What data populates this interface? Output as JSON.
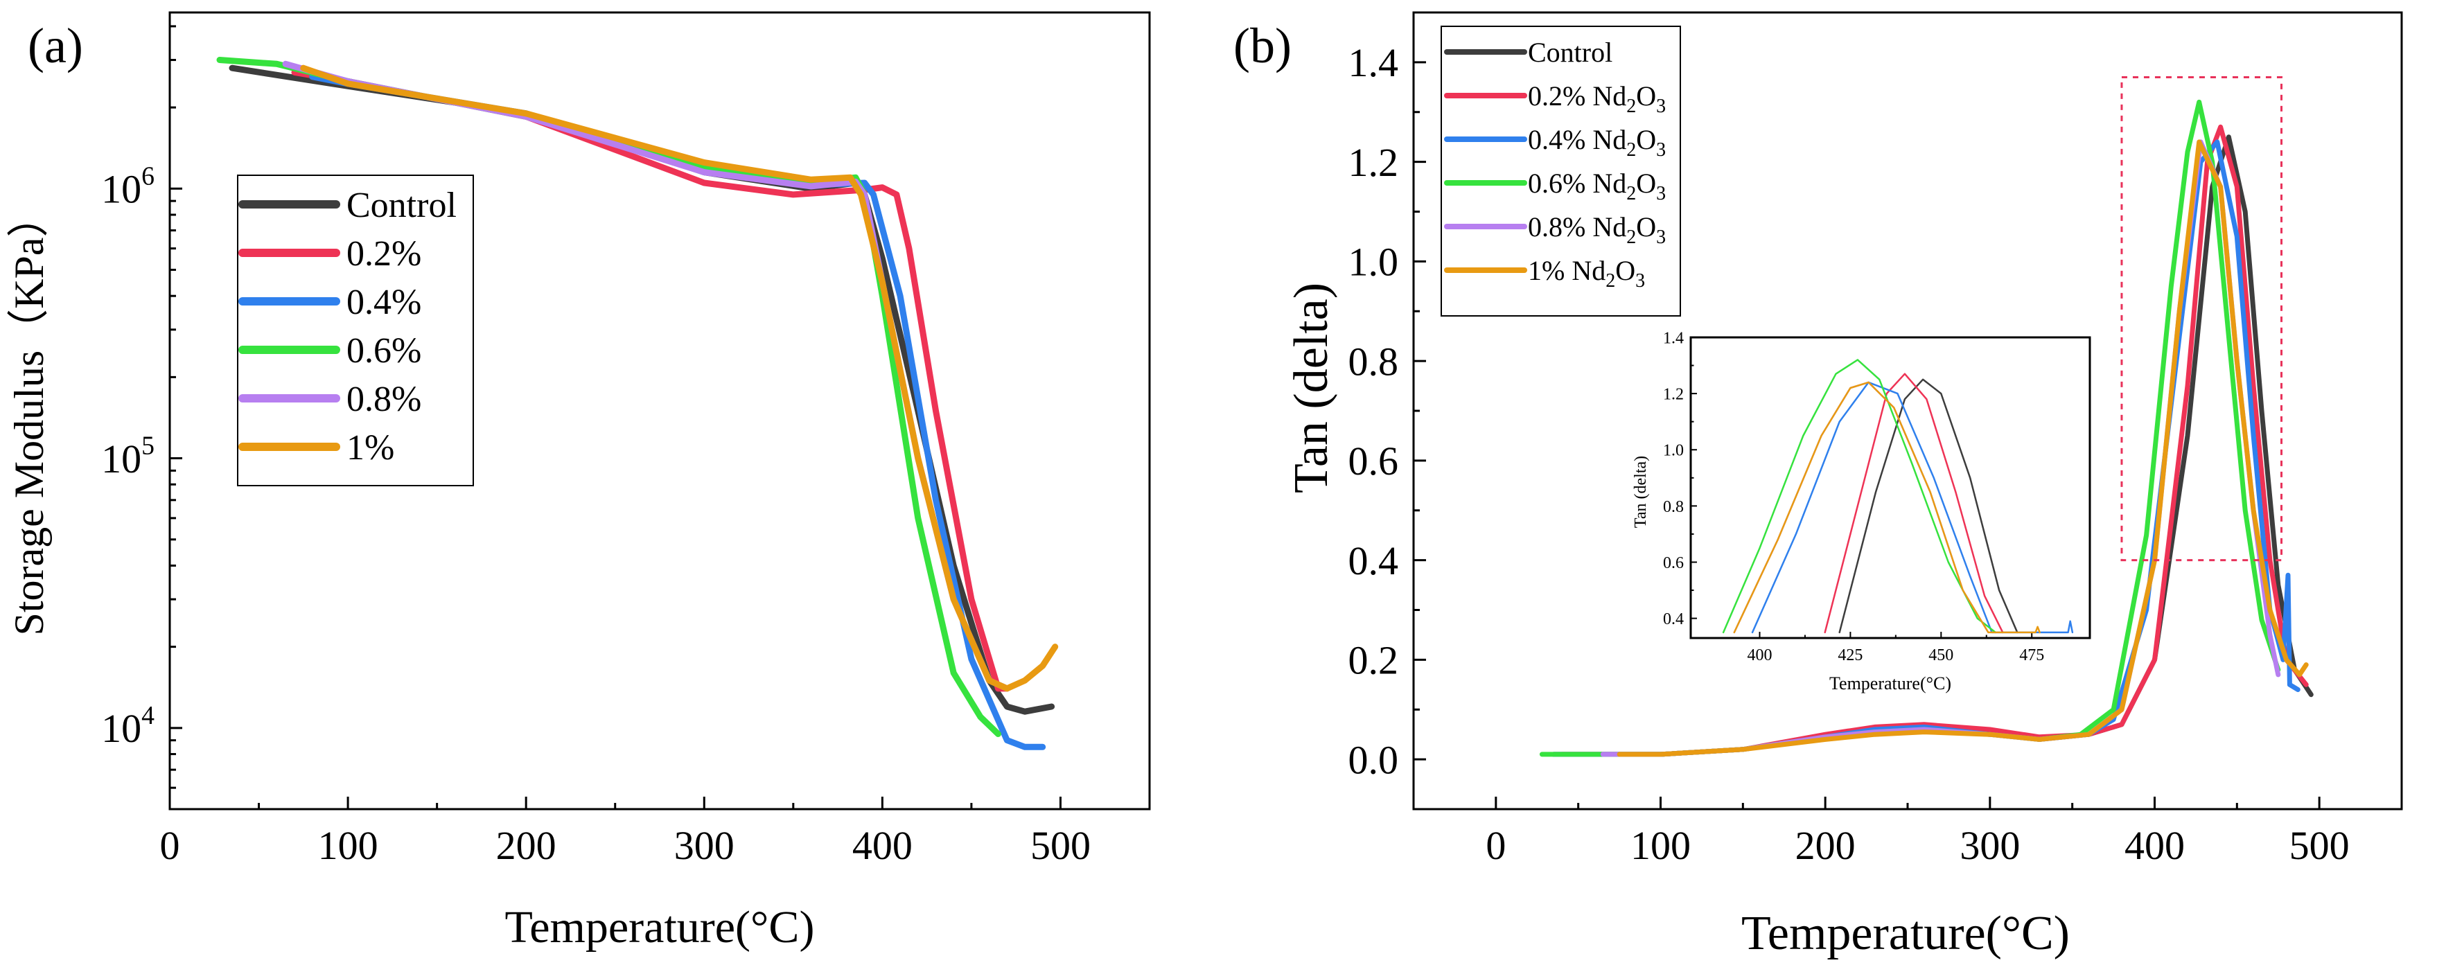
{
  "colors": {
    "Control": "#3d3d3d",
    "0.2%": "#ee3355",
    "0.4%": "#2f80ed",
    "0.6%": "#36e23e",
    "0.8%": "#b77ff0",
    "1%": "#e89a12",
    "box": "#e8325a"
  },
  "chart_data": [
    {
      "panel_label": "(a)",
      "type": "line",
      "yscale": "log",
      "xlabel": "Temperature(°C)",
      "ylabel": "Storage Modulus（KPa）",
      "xlim": [
        0,
        550
      ],
      "ylim": [
        5000,
        4500000
      ],
      "xticks": [
        0,
        100,
        200,
        300,
        400,
        500
      ],
      "xtick_labels": [
        "0",
        "100",
        "200",
        "300",
        "400",
        "500"
      ],
      "yticks": [
        10000,
        100000,
        1000000
      ],
      "ytick_labels": [
        {
          "base": "10",
          "exp": "4"
        },
        {
          "base": "10",
          "exp": "5"
        },
        {
          "base": "10",
          "exp": "6"
        }
      ],
      "legend": {
        "position": "upper-left",
        "entries": [
          "Control",
          "0.2%",
          "0.4%",
          "0.6%",
          "0.8%",
          "1%"
        ]
      },
      "series": [
        {
          "name": "Control",
          "x": [
            35,
            100,
            200,
            300,
            360,
            385,
            390,
            400,
            420,
            440,
            460,
            470,
            480,
            495
          ],
          "y": [
            2800000,
            2400000,
            1900000,
            1150000,
            1000000,
            1050000,
            950000,
            550000,
            150000,
            40000,
            15000,
            12000,
            11500,
            12000
          ]
        },
        {
          "name": "0.2%",
          "x": [
            70,
            100,
            200,
            300,
            350,
            390,
            400,
            408,
            415,
            430,
            450,
            465,
            470
          ],
          "y": [
            2700000,
            2500000,
            1850000,
            1050000,
            950000,
            990000,
            1010000,
            950000,
            600000,
            150000,
            30000,
            14000,
            14000
          ]
        },
        {
          "name": "0.4%",
          "x": [
            80,
            100,
            200,
            300,
            360,
            390,
            395,
            410,
            430,
            450,
            470,
            480,
            490
          ],
          "y": [
            2600000,
            2450000,
            1900000,
            1150000,
            1030000,
            1050000,
            950000,
            400000,
            70000,
            18000,
            9000,
            8500,
            8500
          ]
        },
        {
          "name": "0.6%",
          "x": [
            28,
            60,
            100,
            200,
            300,
            360,
            385,
            390,
            400,
            420,
            440,
            455,
            465
          ],
          "y": [
            3000000,
            2900000,
            2500000,
            1850000,
            1200000,
            1050000,
            1100000,
            950000,
            400000,
            60000,
            16000,
            11000,
            9500
          ]
        },
        {
          "name": "0.8%",
          "x": [
            65,
            100,
            200,
            300,
            360,
            385,
            390,
            400,
            420,
            440,
            460,
            470
          ],
          "y": [
            2900000,
            2500000,
            1850000,
            1150000,
            1020000,
            1060000,
            950000,
            450000,
            100000,
            30000,
            15000,
            14000
          ]
        },
        {
          "name": "1%",
          "x": [
            75,
            100,
            200,
            300,
            360,
            382,
            388,
            400,
            420,
            440,
            460,
            470,
            480,
            490,
            497
          ],
          "y": [
            2800000,
            2450000,
            1900000,
            1250000,
            1080000,
            1100000,
            950000,
            450000,
            100000,
            30000,
            15000,
            14000,
            15000,
            17000,
            20000
          ]
        }
      ]
    },
    {
      "panel_label": "(b)",
      "type": "line",
      "xlabel": "Temperature(°C)",
      "ylabel": "Tan (delta)",
      "xlim": [
        -50,
        550
      ],
      "ylim": [
        -0.1,
        1.5
      ],
      "xticks": [
        0,
        100,
        200,
        300,
        400,
        500
      ],
      "xtick_labels": [
        "0",
        "100",
        "200",
        "300",
        "400",
        "500"
      ],
      "yticks": [
        0.0,
        0.2,
        0.4,
        0.6,
        0.8,
        1.0,
        1.2,
        1.4
      ],
      "ytick_labels": [
        "0.0",
        "0.2",
        "0.4",
        "0.6",
        "0.8",
        "1.0",
        "1.2",
        "1.4"
      ],
      "legend": {
        "position": "upper-left",
        "entries": [
          {
            "name": "Control",
            "text": "Control",
            "sub": "",
            "tail": ""
          },
          {
            "name": "0.2%",
            "text": "0.2% Nd",
            "sub": "2",
            "tail": "O",
            "sub2": "3"
          },
          {
            "name": "0.4%",
            "text": "0.4% Nd",
            "sub": "2",
            "tail": "O",
            "sub2": "3"
          },
          {
            "name": "0.6%",
            "text": "0.6% Nd",
            "sub": "2",
            "tail": "O",
            "sub2": "3"
          },
          {
            "name": "0.8%",
            "text": "0.8% Nd",
            "sub": "2",
            "tail": "O",
            "sub2": "3"
          },
          {
            "name": "1%",
            "text": "1% Nd",
            "sub": "2",
            "tail": "O",
            "sub2": "3"
          }
        ]
      },
      "highlight_box": {
        "x": [
          380,
          477
        ],
        "y": [
          0.4,
          1.37
        ]
      },
      "series": [
        {
          "name": "Control",
          "x": [
            35,
            100,
            150,
            200,
            230,
            260,
            300,
            330,
            360,
            380,
            400,
            420,
            435,
            445,
            455,
            465,
            475,
            485,
            495
          ],
          "y": [
            0.01,
            0.01,
            0.02,
            0.045,
            0.06,
            0.065,
            0.055,
            0.04,
            0.05,
            0.07,
            0.2,
            0.65,
            1.15,
            1.25,
            1.1,
            0.7,
            0.35,
            0.18,
            0.13
          ]
        },
        {
          "name": "0.2%",
          "x": [
            40,
            100,
            150,
            200,
            230,
            260,
            300,
            330,
            360,
            380,
            400,
            420,
            432,
            440,
            450,
            460,
            470,
            480,
            492
          ],
          "y": [
            0.01,
            0.01,
            0.02,
            0.05,
            0.065,
            0.07,
            0.06,
            0.045,
            0.05,
            0.07,
            0.2,
            0.75,
            1.2,
            1.27,
            1.15,
            0.75,
            0.4,
            0.2,
            0.15
          ]
        },
        {
          "name": "0.4%",
          "x": [
            35,
            100,
            150,
            200,
            230,
            260,
            300,
            330,
            360,
            375,
            395,
            415,
            428,
            438,
            450,
            460,
            470,
            478,
            481,
            482,
            487
          ],
          "y": [
            0.01,
            0.01,
            0.02,
            0.045,
            0.06,
            0.065,
            0.05,
            0.04,
            0.05,
            0.08,
            0.3,
            0.85,
            1.2,
            1.24,
            1.05,
            0.65,
            0.3,
            0.2,
            0.37,
            0.15,
            0.14
          ]
        },
        {
          "name": "0.6%",
          "x": [
            28,
            100,
            150,
            200,
            230,
            260,
            300,
            330,
            355,
            375,
            395,
            410,
            420,
            427,
            435,
            445,
            455,
            465,
            475
          ],
          "y": [
            0.01,
            0.01,
            0.02,
            0.045,
            0.055,
            0.06,
            0.05,
            0.04,
            0.05,
            0.1,
            0.45,
            0.95,
            1.22,
            1.32,
            1.2,
            0.85,
            0.5,
            0.28,
            0.18
          ]
        },
        {
          "name": "0.8%",
          "x": [
            65,
            100,
            150,
            200,
            230,
            260,
            300,
            330,
            360,
            380,
            400,
            415,
            428,
            440,
            450,
            460,
            470,
            475
          ],
          "y": [
            0.01,
            0.01,
            0.02,
            0.045,
            0.055,
            0.06,
            0.05,
            0.04,
            0.05,
            0.1,
            0.4,
            0.9,
            1.24,
            1.15,
            0.8,
            0.5,
            0.25,
            0.17
          ]
        },
        {
          "name": "1%",
          "x": [
            75,
            100,
            150,
            200,
            230,
            260,
            300,
            330,
            360,
            380,
            400,
            415,
            427,
            440,
            450,
            460,
            470,
            480,
            488,
            492
          ],
          "y": [
            0.01,
            0.01,
            0.02,
            0.04,
            0.05,
            0.055,
            0.05,
            0.04,
            0.05,
            0.1,
            0.4,
            0.9,
            1.24,
            1.15,
            0.8,
            0.5,
            0.3,
            0.2,
            0.17,
            0.19
          ]
        }
      ]
    },
    {
      "panel_label": "inset",
      "type": "line",
      "xlabel": "Temperature(°C)",
      "ylabel": "Tan (delta)",
      "xlim": [
        381,
        491
      ],
      "ylim": [
        0.33,
        1.4
      ],
      "xticks": [
        400,
        425,
        450,
        475
      ],
      "xtick_labels": [
        "400",
        "425",
        "450",
        "475"
      ],
      "yticks": [
        0.4,
        0.6,
        0.8,
        1.0,
        1.2,
        1.4
      ],
      "ytick_labels": [
        "0.4",
        "0.6",
        "0.8",
        "1.0",
        "1.2",
        "1.4"
      ],
      "series": [
        {
          "name": "Control",
          "x": [
            422,
            432,
            440,
            445,
            450,
            458,
            466,
            471
          ],
          "y": [
            0.35,
            0.85,
            1.18,
            1.25,
            1.2,
            0.9,
            0.5,
            0.35
          ]
        },
        {
          "name": "0.2%",
          "x": [
            418,
            428,
            435,
            440,
            446,
            454,
            462,
            467
          ],
          "y": [
            0.35,
            0.85,
            1.2,
            1.27,
            1.18,
            0.85,
            0.48,
            0.35
          ]
        },
        {
          "name": "0.4%",
          "x": [
            398,
            410,
            422,
            430,
            438,
            448,
            458,
            464,
            473,
            485,
            485.6,
            486.2
          ],
          "y": [
            0.35,
            0.7,
            1.1,
            1.24,
            1.2,
            0.9,
            0.55,
            0.35,
            0.35,
            0.35,
            0.39,
            0.35
          ]
        },
        {
          "name": "0.6%",
          "x": [
            390,
            400,
            412,
            421,
            427,
            433,
            442,
            452,
            460,
            465
          ],
          "y": [
            0.35,
            0.65,
            1.05,
            1.27,
            1.32,
            1.25,
            0.95,
            0.6,
            0.4,
            0.35
          ]
        },
        {
          "name": "0.8%",
          "x": [
            393,
            405,
            417,
            425,
            430,
            437,
            447,
            456,
            463
          ],
          "y": [
            0.35,
            0.68,
            1.05,
            1.22,
            1.24,
            1.15,
            0.85,
            0.5,
            0.35
          ]
        },
        {
          "name": "1%",
          "x": [
            393,
            405,
            417,
            425,
            430,
            437,
            447,
            456,
            463,
            470,
            476,
            476.6,
            477.2
          ],
          "y": [
            0.35,
            0.68,
            1.05,
            1.22,
            1.24,
            1.15,
            0.85,
            0.5,
            0.35,
            0.35,
            0.35,
            0.37,
            0.35
          ]
        }
      ]
    }
  ]
}
